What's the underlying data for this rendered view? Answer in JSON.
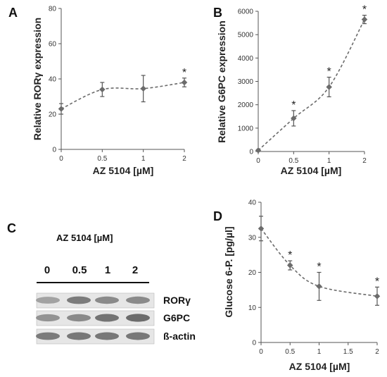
{
  "chart_data": [
    {
      "panel": "A",
      "type": "line",
      "x": [
        0,
        0.5,
        1,
        2
      ],
      "values": [
        23,
        34,
        34.5,
        38
      ],
      "errors": [
        3,
        4,
        7.5,
        2.5
      ],
      "significant": [
        false,
        false,
        false,
        true
      ],
      "star": "*",
      "xlabel": "AZ 5104 [µM]",
      "ylabel": "Relative RORγ expression",
      "xlim": [
        0,
        2
      ],
      "ylim": [
        0,
        80
      ],
      "xticks": [
        "0",
        "0.5",
        "1",
        "2"
      ],
      "xtick_values": [
        0,
        0.5,
        1,
        2
      ],
      "yticks": [
        "0",
        "20",
        "40",
        "60",
        "80"
      ],
      "ytick_values": [
        0,
        20,
        40,
        60,
        80
      ],
      "color": "#6b6b6b",
      "line_style": "dashed",
      "x_scale": "categorical"
    },
    {
      "panel": "B",
      "type": "line",
      "x": [
        0,
        0.5,
        1,
        2
      ],
      "values": [
        50,
        1420,
        2760,
        5650
      ],
      "errors": [
        30,
        330,
        420,
        180
      ],
      "significant": [
        false,
        true,
        true,
        true
      ],
      "star": "*",
      "xlabel": "AZ 5104 [µM]",
      "ylabel": "Relative G6PC expression",
      "xlim": [
        0,
        2
      ],
      "ylim": [
        0,
        6000
      ],
      "xticks": [
        "0",
        "0.5",
        "1",
        "2"
      ],
      "xtick_values": [
        0,
        0.5,
        1,
        2
      ],
      "yticks": [
        "0",
        "1000",
        "2000",
        "3000",
        "4000",
        "5000",
        "6000"
      ],
      "ytick_values": [
        0,
        1000,
        2000,
        3000,
        4000,
        5000,
        6000
      ],
      "color": "#6b6b6b",
      "line_style": "dashed",
      "x_scale": "categorical"
    },
    {
      "panel": "D",
      "type": "line",
      "x": [
        0,
        0.5,
        1,
        2
      ],
      "values": [
        32.5,
        22,
        16,
        13.2
      ],
      "errors": [
        3.5,
        1.3,
        4,
        2.6
      ],
      "significant": [
        false,
        true,
        true,
        true
      ],
      "star": "*",
      "xlabel": "AZ 5104 [µM]",
      "ylabel": "Glucose 6-P. [pg/µl]",
      "xlim": [
        0,
        2
      ],
      "ylim": [
        0,
        40
      ],
      "xticks": [
        "0",
        "0.5",
        "1",
        "1.5",
        "2"
      ],
      "xtick_values": [
        0,
        0.5,
        1,
        1.5,
        2
      ],
      "yticks": [
        "0",
        "10",
        "20",
        "30",
        "40"
      ],
      "ytick_values": [
        0,
        10,
        20,
        30,
        40
      ],
      "color": "#6b6b6b",
      "line_style": "dashed",
      "x_scale": "linear"
    }
  ],
  "blot": {
    "panel": "C",
    "title": "AZ 5104 [µM]",
    "lanes": [
      "0",
      "0.5",
      "1",
      "2"
    ],
    "rows": [
      {
        "label": "RORγ",
        "intensity": [
          0.45,
          0.7,
          0.6,
          0.6
        ]
      },
      {
        "label": "G6PC",
        "intensity": [
          0.55,
          0.6,
          0.75,
          0.8
        ]
      },
      {
        "label": "ß-actin",
        "intensity": [
          0.7,
          0.72,
          0.72,
          0.72
        ]
      }
    ]
  }
}
